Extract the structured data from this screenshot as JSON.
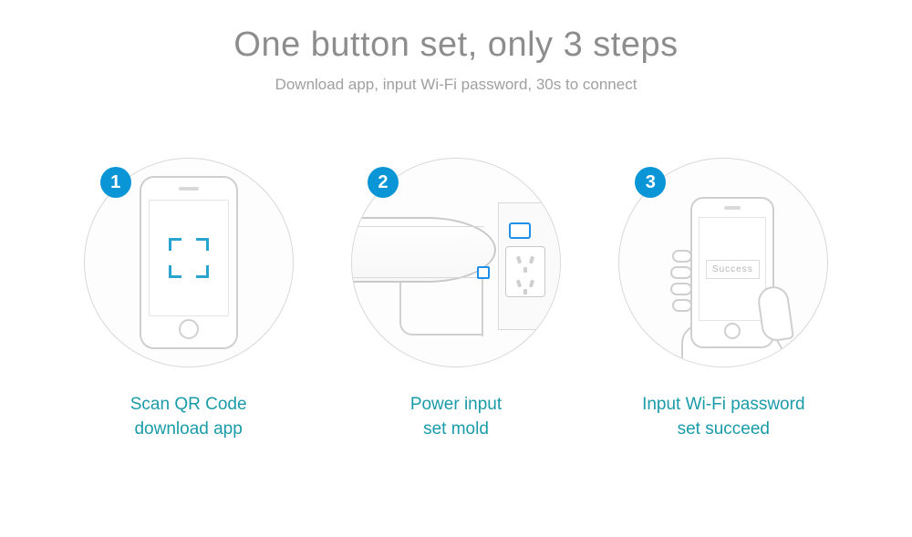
{
  "colors": {
    "title_gray": "#8d8d8d",
    "subtitle_gray": "#a0a0a0",
    "caption_teal": "#1a9ba8",
    "badge_blue": "#0a96d6",
    "badge_text": "#ffffff",
    "qr_bracket": "#29a3cf",
    "circle_border": "#d8d8d8",
    "line_gray": "#cfcfcf",
    "led_blue": "#1f8fe8",
    "success_gray": "#b5b5b5"
  },
  "header": {
    "title": "One button set, only 3 steps",
    "subtitle": "Download app, input Wi-Fi password, 30s to connect"
  },
  "steps": [
    {
      "num": "1",
      "caption": "Scan QR Code\ndownload app"
    },
    {
      "num": "2",
      "caption": "Power input\nset mold"
    },
    {
      "num": "3",
      "caption": "Input Wi-Fi password\nset succeed",
      "success_label": "Success"
    }
  ]
}
